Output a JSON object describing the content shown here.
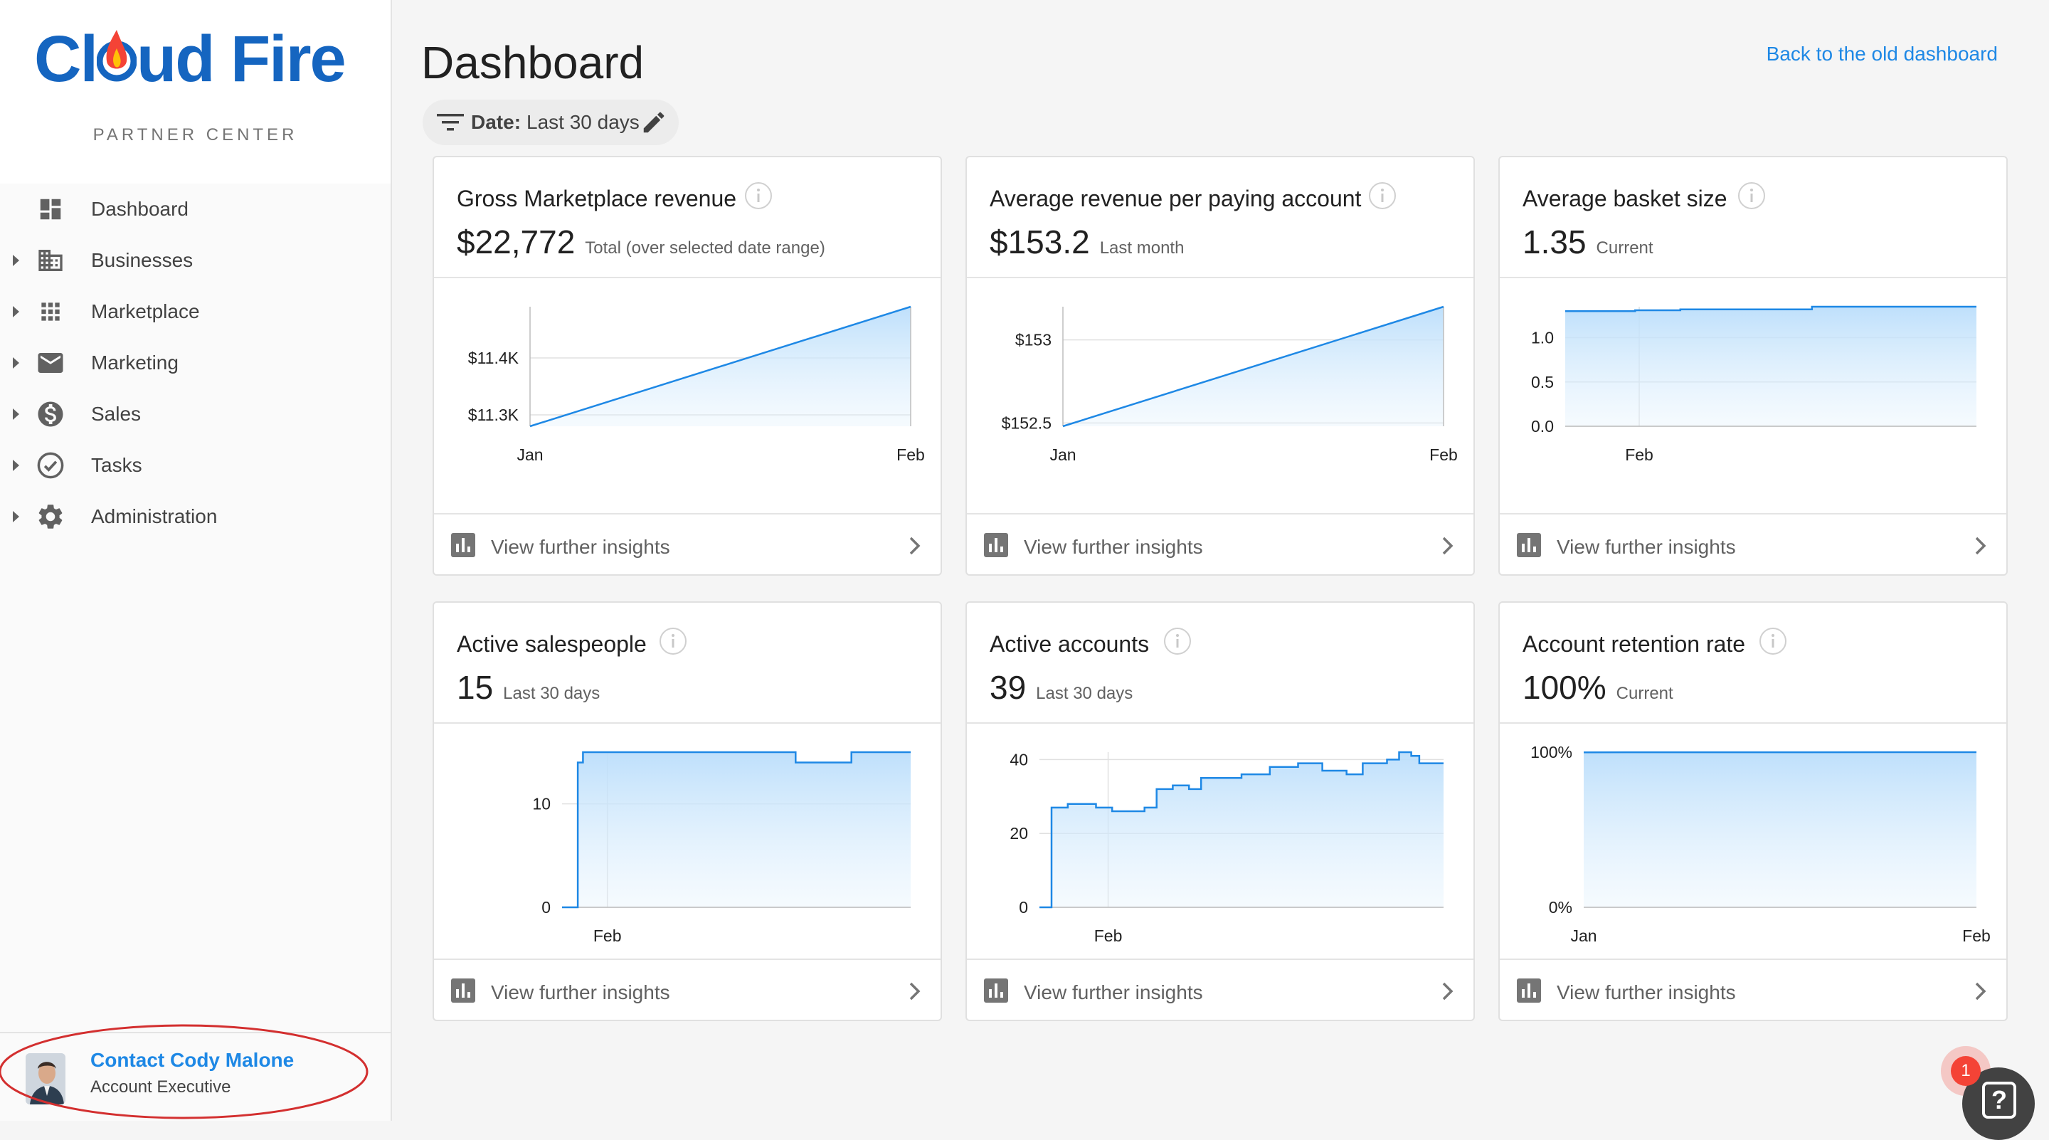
{
  "brand": {
    "logo_text_1": "Cl",
    "logo_text_2": "ud Fire",
    "subtitle": "PARTNER CENTER",
    "logo_color": "#1565c0"
  },
  "sidebar": {
    "items": [
      {
        "label": "Dashboard",
        "icon": "dashboard-icon",
        "expandable": false
      },
      {
        "label": "Businesses",
        "icon": "business-icon",
        "expandable": true
      },
      {
        "label": "Marketplace",
        "icon": "apps-grid-icon",
        "expandable": true
      },
      {
        "label": "Marketing",
        "icon": "mail-icon",
        "expandable": true
      },
      {
        "label": "Sales",
        "icon": "dollar-icon",
        "expandable": true
      },
      {
        "label": "Tasks",
        "icon": "check-circle-icon",
        "expandable": true
      },
      {
        "label": "Administration",
        "icon": "gear-icon",
        "expandable": true
      }
    ]
  },
  "contact": {
    "name": "Contact Cody Malone",
    "role": "Account Executive"
  },
  "header": {
    "title": "Dashboard",
    "back_link": "Back to the old dashboard",
    "link_color": "#1e88e5"
  },
  "filter": {
    "key": "Date:",
    "value": "Last 30 days"
  },
  "cards": [
    {
      "title": "Gross Marketplace revenue",
      "value": "$22,772",
      "sub": "Total (over selected date range)",
      "footer": "View further insights"
    },
    {
      "title": "Average revenue per paying account",
      "value": "$153.2",
      "sub": "Last month",
      "footer": "View further insights"
    },
    {
      "title": "Average basket size",
      "value": "1.35",
      "sub": "Current",
      "footer": "View further insights"
    },
    {
      "title": "Active salespeople",
      "value": "15",
      "sub": "Last 30 days",
      "footer": "View further insights"
    },
    {
      "title": "Active accounts",
      "value": "39",
      "sub": "Last 30 days",
      "footer": "View further insights"
    },
    {
      "title": "Account retention rate",
      "value": "100%",
      "sub": "Current",
      "footer": "View further insights"
    }
  ],
  "chart_data": [
    {
      "type": "area",
      "title": "",
      "x": [
        "Jan",
        "Feb"
      ],
      "series": [
        {
          "values": [
            11280,
            11490
          ]
        }
      ],
      "yticks": [
        {
          "v": 11300,
          "label": "$11.3K"
        },
        {
          "v": 11400,
          "label": "$11.4K"
        }
      ],
      "ylim": [
        11280,
        11490
      ],
      "xticks": [
        {
          "v": 0,
          "label": "Jan"
        },
        {
          "v": 1,
          "label": "Feb"
        }
      ],
      "xlim": [
        0,
        1
      ]
    },
    {
      "type": "area",
      "title": "",
      "x": [
        "Jan",
        "Feb"
      ],
      "series": [
        {
          "values": [
            152.48,
            153.2
          ]
        }
      ],
      "yticks": [
        {
          "v": 152.5,
          "label": "$152.5"
        },
        {
          "v": 153,
          "label": "$153"
        }
      ],
      "ylim": [
        152.48,
        153.2
      ],
      "xticks": [
        {
          "v": 0,
          "label": "Jan"
        },
        {
          "v": 1,
          "label": "Feb"
        }
      ],
      "xlim": [
        0,
        1
      ]
    },
    {
      "type": "area",
      "title": "",
      "step": true,
      "series": [
        {
          "points": [
            [
              0,
              1.3
            ],
            [
              0.17,
              1.3
            ],
            [
              0.17,
              1.31
            ],
            [
              0.28,
              1.31
            ],
            [
              0.28,
              1.32
            ],
            [
              0.6,
              1.32
            ],
            [
              0.6,
              1.35
            ],
            [
              1,
              1.35
            ]
          ]
        }
      ],
      "yticks": [
        {
          "v": 0,
          "label": "0.0"
        },
        {
          "v": 0.5,
          "label": "0.5"
        },
        {
          "v": 1,
          "label": "1.0"
        }
      ],
      "ylim": [
        0,
        1.35
      ],
      "xticks": [
        {
          "v": 0.18,
          "label": "Feb"
        }
      ],
      "xlim": [
        0,
        1
      ]
    },
    {
      "type": "area",
      "title": "",
      "step": true,
      "series": [
        {
          "points": [
            [
              0,
              0
            ],
            [
              0.045,
              0
            ],
            [
              0.045,
              14
            ],
            [
              0.06,
              14
            ],
            [
              0.06,
              15
            ],
            [
              0.67,
              15
            ],
            [
              0.67,
              14
            ],
            [
              0.83,
              14
            ],
            [
              0.83,
              15
            ],
            [
              1,
              15
            ]
          ]
        }
      ],
      "yticks": [
        {
          "v": 0,
          "label": "0"
        },
        {
          "v": 10,
          "label": "10"
        }
      ],
      "ylim": [
        0,
        15
      ],
      "xticks": [
        {
          "v": 0.13,
          "label": "Feb"
        }
      ],
      "xlim": [
        0,
        1
      ]
    },
    {
      "type": "area",
      "title": "",
      "step": true,
      "series": [
        {
          "points": [
            [
              0,
              0
            ],
            [
              0.03,
              0
            ],
            [
              0.03,
              27
            ],
            [
              0.07,
              27
            ],
            [
              0.07,
              28
            ],
            [
              0.14,
              28
            ],
            [
              0.14,
              27
            ],
            [
              0.18,
              27
            ],
            [
              0.18,
              26
            ],
            [
              0.26,
              26
            ],
            [
              0.26,
              27
            ],
            [
              0.29,
              27
            ],
            [
              0.29,
              32
            ],
            [
              0.33,
              32
            ],
            [
              0.33,
              33
            ],
            [
              0.37,
              33
            ],
            [
              0.37,
              32
            ],
            [
              0.4,
              32
            ],
            [
              0.4,
              35
            ],
            [
              0.5,
              35
            ],
            [
              0.5,
              36
            ],
            [
              0.57,
              36
            ],
            [
              0.57,
              38
            ],
            [
              0.64,
              38
            ],
            [
              0.64,
              39
            ],
            [
              0.7,
              39
            ],
            [
              0.7,
              37
            ],
            [
              0.76,
              37
            ],
            [
              0.76,
              36
            ],
            [
              0.8,
              36
            ],
            [
              0.8,
              39
            ],
            [
              0.86,
              39
            ],
            [
              0.86,
              40
            ],
            [
              0.89,
              40
            ],
            [
              0.89,
              42
            ],
            [
              0.92,
              42
            ],
            [
              0.92,
              41
            ],
            [
              0.94,
              41
            ],
            [
              0.94,
              39
            ],
            [
              1,
              39
            ]
          ]
        }
      ],
      "yticks": [
        {
          "v": 0,
          "label": "0"
        },
        {
          "v": 20,
          "label": "20"
        },
        {
          "v": 40,
          "label": "40"
        }
      ],
      "ylim": [
        0,
        42
      ],
      "xticks": [
        {
          "v": 0.17,
          "label": "Feb"
        }
      ],
      "xlim": [
        0,
        1
      ]
    },
    {
      "type": "area",
      "title": "",
      "x": [
        "Jan",
        "Feb"
      ],
      "series": [
        {
          "values": [
            99.9,
            100
          ]
        }
      ],
      "yticks": [
        {
          "v": 0,
          "label": "0%"
        },
        {
          "v": 100,
          "label": "100%"
        }
      ],
      "ylim": [
        0,
        100
      ],
      "xticks": [
        {
          "v": 0,
          "label": "Jan"
        },
        {
          "v": 1,
          "label": "Feb"
        }
      ],
      "xlim": [
        0,
        1
      ]
    }
  ],
  "help": {
    "badge": "1",
    "glyph": "?"
  }
}
